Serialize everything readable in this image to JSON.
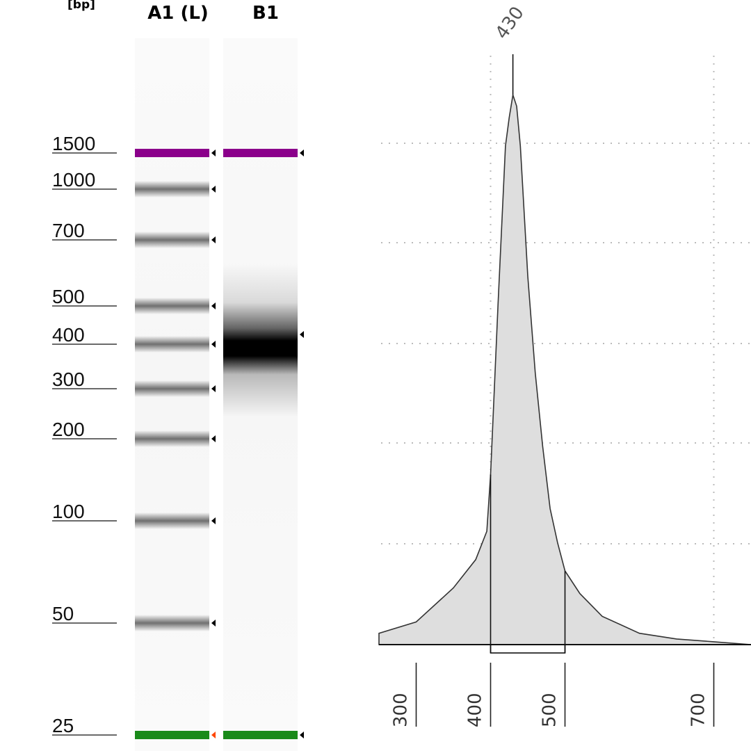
{
  "gel": {
    "unit_label": "[bp]",
    "lanes": [
      {
        "name": "A1 (L)"
      },
      {
        "name": "B1"
      }
    ],
    "ladder": [
      "1500",
      "1000",
      "700",
      "500",
      "400",
      "300",
      "200",
      "100",
      "50",
      "25"
    ],
    "colors": {
      "upper_marker": "#8b008b",
      "lower_marker": "#1a8a1a",
      "band": "#000000"
    }
  },
  "chart_data": {
    "type": "area",
    "peak_label": "430",
    "x_ticks": [
      "300",
      "400",
      "500",
      "700"
    ],
    "x_range": [
      250,
      750
    ],
    "region": [
      400,
      500
    ],
    "series": [
      {
        "x": [
          250,
          300,
          350,
          380,
          395,
          400,
          410,
          420,
          425,
          430,
          435,
          440,
          450,
          460,
          470,
          480,
          490,
          500,
          520,
          550,
          600,
          650,
          700,
          750
        ],
        "y": [
          2,
          4,
          10,
          15,
          20,
          30,
          60,
          88,
          93,
          97,
          95,
          88,
          65,
          48,
          35,
          24,
          18,
          13,
          9,
          5,
          2,
          1,
          0.5,
          0
        ]
      }
    ],
    "colors": {
      "fill": "#dedede",
      "line": "#333333",
      "grid": "#bbbbbb"
    }
  }
}
